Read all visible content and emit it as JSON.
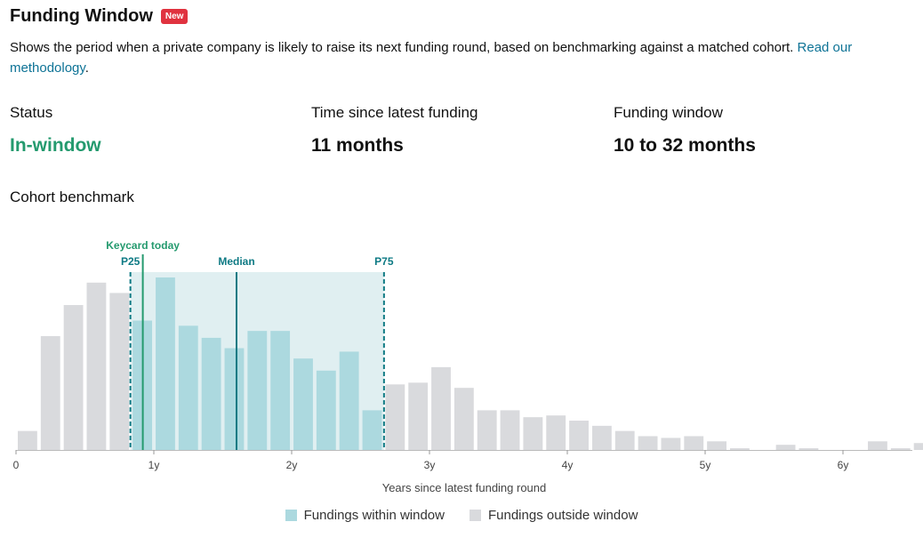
{
  "header": {
    "title": "Funding Window",
    "badge": "New"
  },
  "description": {
    "text": "Shows the period when a private company is likely to raise its next funding round, based on benchmarking against a matched cohort. ",
    "link": "Read our methodology",
    "end": "."
  },
  "stats": [
    {
      "label": "Status",
      "value": "In-window",
      "color": "#249a6e"
    },
    {
      "label": "Time since latest funding",
      "value": "11 months"
    },
    {
      "label": "Funding window",
      "value": "10 to 32 months"
    }
  ],
  "section": {
    "title": "Cohort benchmark"
  },
  "colors": {
    "inside": "#acd9df",
    "outside": "#d9dadd",
    "window_fill": "#e0eff1",
    "marker": "#0e7a84",
    "today": "#249a6e"
  },
  "chart_data": {
    "type": "bar",
    "xlabel": "Years since latest funding round",
    "xlim": [
      0,
      6.5
    ],
    "ylim": [
      0,
      100
    ],
    "x_ticks": [
      {
        "value": 0,
        "label": "0"
      },
      {
        "value": 1,
        "label": "1y"
      },
      {
        "value": 2,
        "label": "2y"
      },
      {
        "value": 3,
        "label": "3y"
      },
      {
        "value": 4,
        "label": "4y"
      },
      {
        "value": 5,
        "label": "5y"
      },
      {
        "value": 6,
        "label": "6y"
      }
    ],
    "bin_width_years": 0.1667,
    "values": [
      11,
      66,
      84,
      97,
      91,
      75,
      100,
      72,
      65,
      59,
      69,
      69,
      53,
      46,
      57,
      23,
      38,
      39,
      48,
      36,
      23,
      23,
      19,
      20,
      17,
      14,
      11,
      8,
      7,
      8,
      5,
      1,
      0,
      3,
      1,
      0,
      0,
      5,
      1,
      4
    ],
    "window": {
      "start": 0.83,
      "end": 2.67
    },
    "markers": [
      {
        "label": "P25",
        "value": 0.83,
        "style": "dashed"
      },
      {
        "label": "Median",
        "value": 1.6,
        "style": "solid"
      },
      {
        "label": "P75",
        "value": 2.67,
        "style": "dashed"
      }
    ],
    "today": {
      "label": "Keycard today",
      "value": 0.92
    },
    "legend": [
      {
        "label": "Fundings within window",
        "color": "#acd9df"
      },
      {
        "label": "Fundings outside window",
        "color": "#d9dadd"
      }
    ]
  }
}
